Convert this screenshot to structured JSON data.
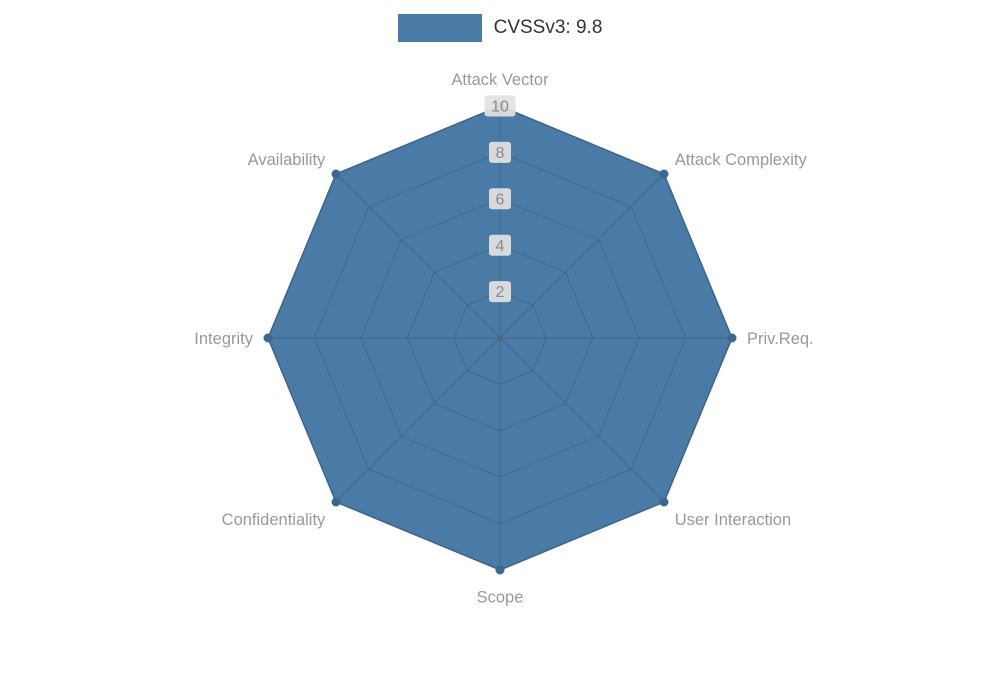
{
  "legend": {
    "label": "CVSSv3: 9.8"
  },
  "chart_data": {
    "type": "radar",
    "title": "CVSSv3: 9.8",
    "categories": [
      "Attack Vector",
      "Attack Complexity",
      "Priv.Req.",
      "User Interaction",
      "Scope",
      "Confidentiality",
      "Integrity",
      "Availability"
    ],
    "series": [
      {
        "name": "CVSSv3: 9.8",
        "values": [
          10,
          10,
          10,
          10,
          10,
          10,
          10,
          10
        ]
      }
    ],
    "axis_max": 10,
    "axis_min": 0,
    "ticks": [
      2,
      4,
      6,
      8,
      10
    ],
    "grid": true,
    "legend_position": "top-center",
    "colors": {
      "series_fill": "#4a7aa6",
      "series_line": "#3e6d99",
      "point_fill": "#3a6890",
      "grid_line": "#4a5560",
      "axis_label": "#999999",
      "tick_label": "#8a8a8a",
      "tick_label_bg": "#e2e2e2",
      "legend_text": "#333333"
    }
  }
}
